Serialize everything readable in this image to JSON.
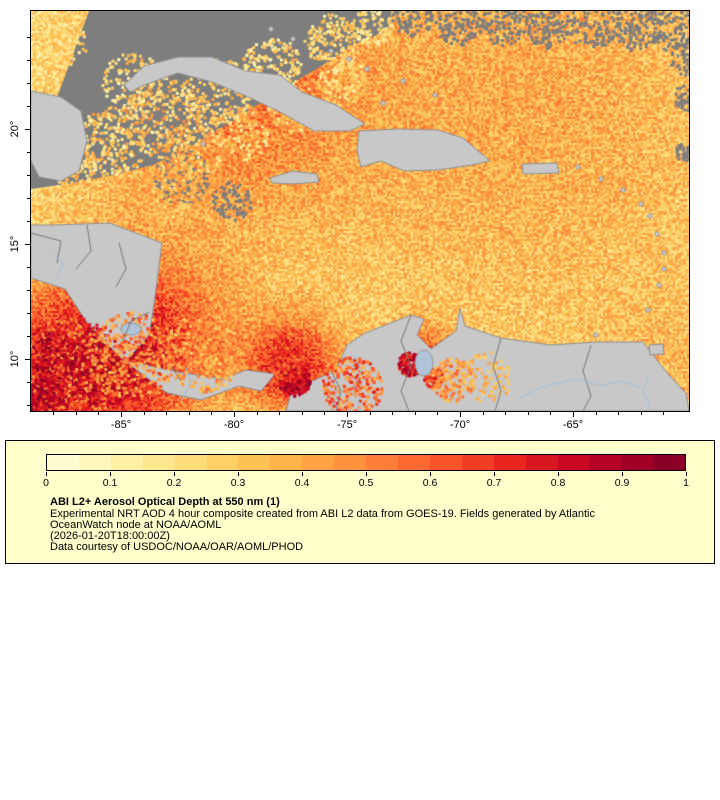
{
  "figure": {
    "x_axis": {
      "tick_labels": [
        "-85°",
        "-80°",
        "-75°",
        "-70°",
        "-65°"
      ]
    },
    "y_axis": {
      "tick_labels": [
        "20°",
        "15°",
        "10°"
      ]
    }
  },
  "legend": {
    "background": "#FFFFCC",
    "tick_labels": [
      "0",
      "0.1",
      "0.2",
      "0.3",
      "0.4",
      "0.5",
      "0.6",
      "0.7",
      "0.8",
      "0.9",
      "1"
    ],
    "title": "ABI L2+ Aerosol Optical Depth at 550 nm (1)",
    "description_line1": "Experimental NRT AOD 4 hour composite created from ABI L2 data from GOES-19. Fields generated by Atlantic",
    "description_line2": "OceanWatch node at NOAA/AOML",
    "timestamp": "(2026-01-20T18:00:00Z)",
    "credit": "Data courtesy of USDOC/NOAA/OAR/AOML/PHOD",
    "colormap_stops": [
      "#FFFFD9",
      "#FFF7B3",
      "#FEE58C",
      "#FED166",
      "#FDB54B",
      "#FD9A41",
      "#FC7635",
      "#F84F27",
      "#E8251E",
      "#CC0A22",
      "#A80026",
      "#800026"
    ]
  },
  "map_colors": {
    "no_data": "#7E7E7E",
    "land": "#C8C8C8",
    "coast": "#8F8F8F",
    "border": "#787878",
    "river": "#A0BEDC",
    "lake": "#AFC4D8"
  }
}
